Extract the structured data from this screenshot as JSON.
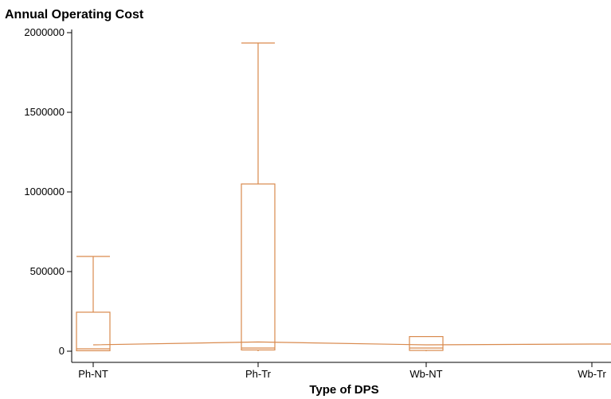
{
  "chart_data": {
    "type": "box",
    "title": "Annual Operating Cost",
    "xlabel": "Type of DPS",
    "ylabel": "",
    "ylim": [
      0,
      2000000
    ],
    "yticks": [
      0,
      500000,
      1000000,
      1500000,
      2000000
    ],
    "ytick_labels": [
      "0",
      "500000",
      "1000000",
      "1500000",
      "2000000"
    ],
    "categories": [
      "Ph-NT",
      "Ph-Tr",
      "Wb-NT",
      "Wb-Tr"
    ],
    "boxes": [
      {
        "category": "Ph-NT",
        "min": 0,
        "q1": 3000,
        "median": 15000,
        "q3": 245000,
        "max": 595000
      },
      {
        "category": "Ph-Tr",
        "min": 0,
        "q1": 8000,
        "median": 20000,
        "q3": 1050000,
        "max": 1935000
      },
      {
        "category": "Wb-NT",
        "min": 0,
        "q1": 5000,
        "median": 20000,
        "q3": 92000,
        "max": 92000
      },
      {
        "category": "Wb-Tr",
        "min": null,
        "q1": null,
        "median": null,
        "q3": null,
        "max": null
      }
    ],
    "trend_line": {
      "x": [
        "Ph-NT",
        "Ph-Tr",
        "Wb-NT",
        "Wb-Tr"
      ],
      "y": [
        40000,
        58000,
        40000,
        45000
      ]
    },
    "grid": false,
    "legend": "none",
    "color": "#d98a4e"
  }
}
